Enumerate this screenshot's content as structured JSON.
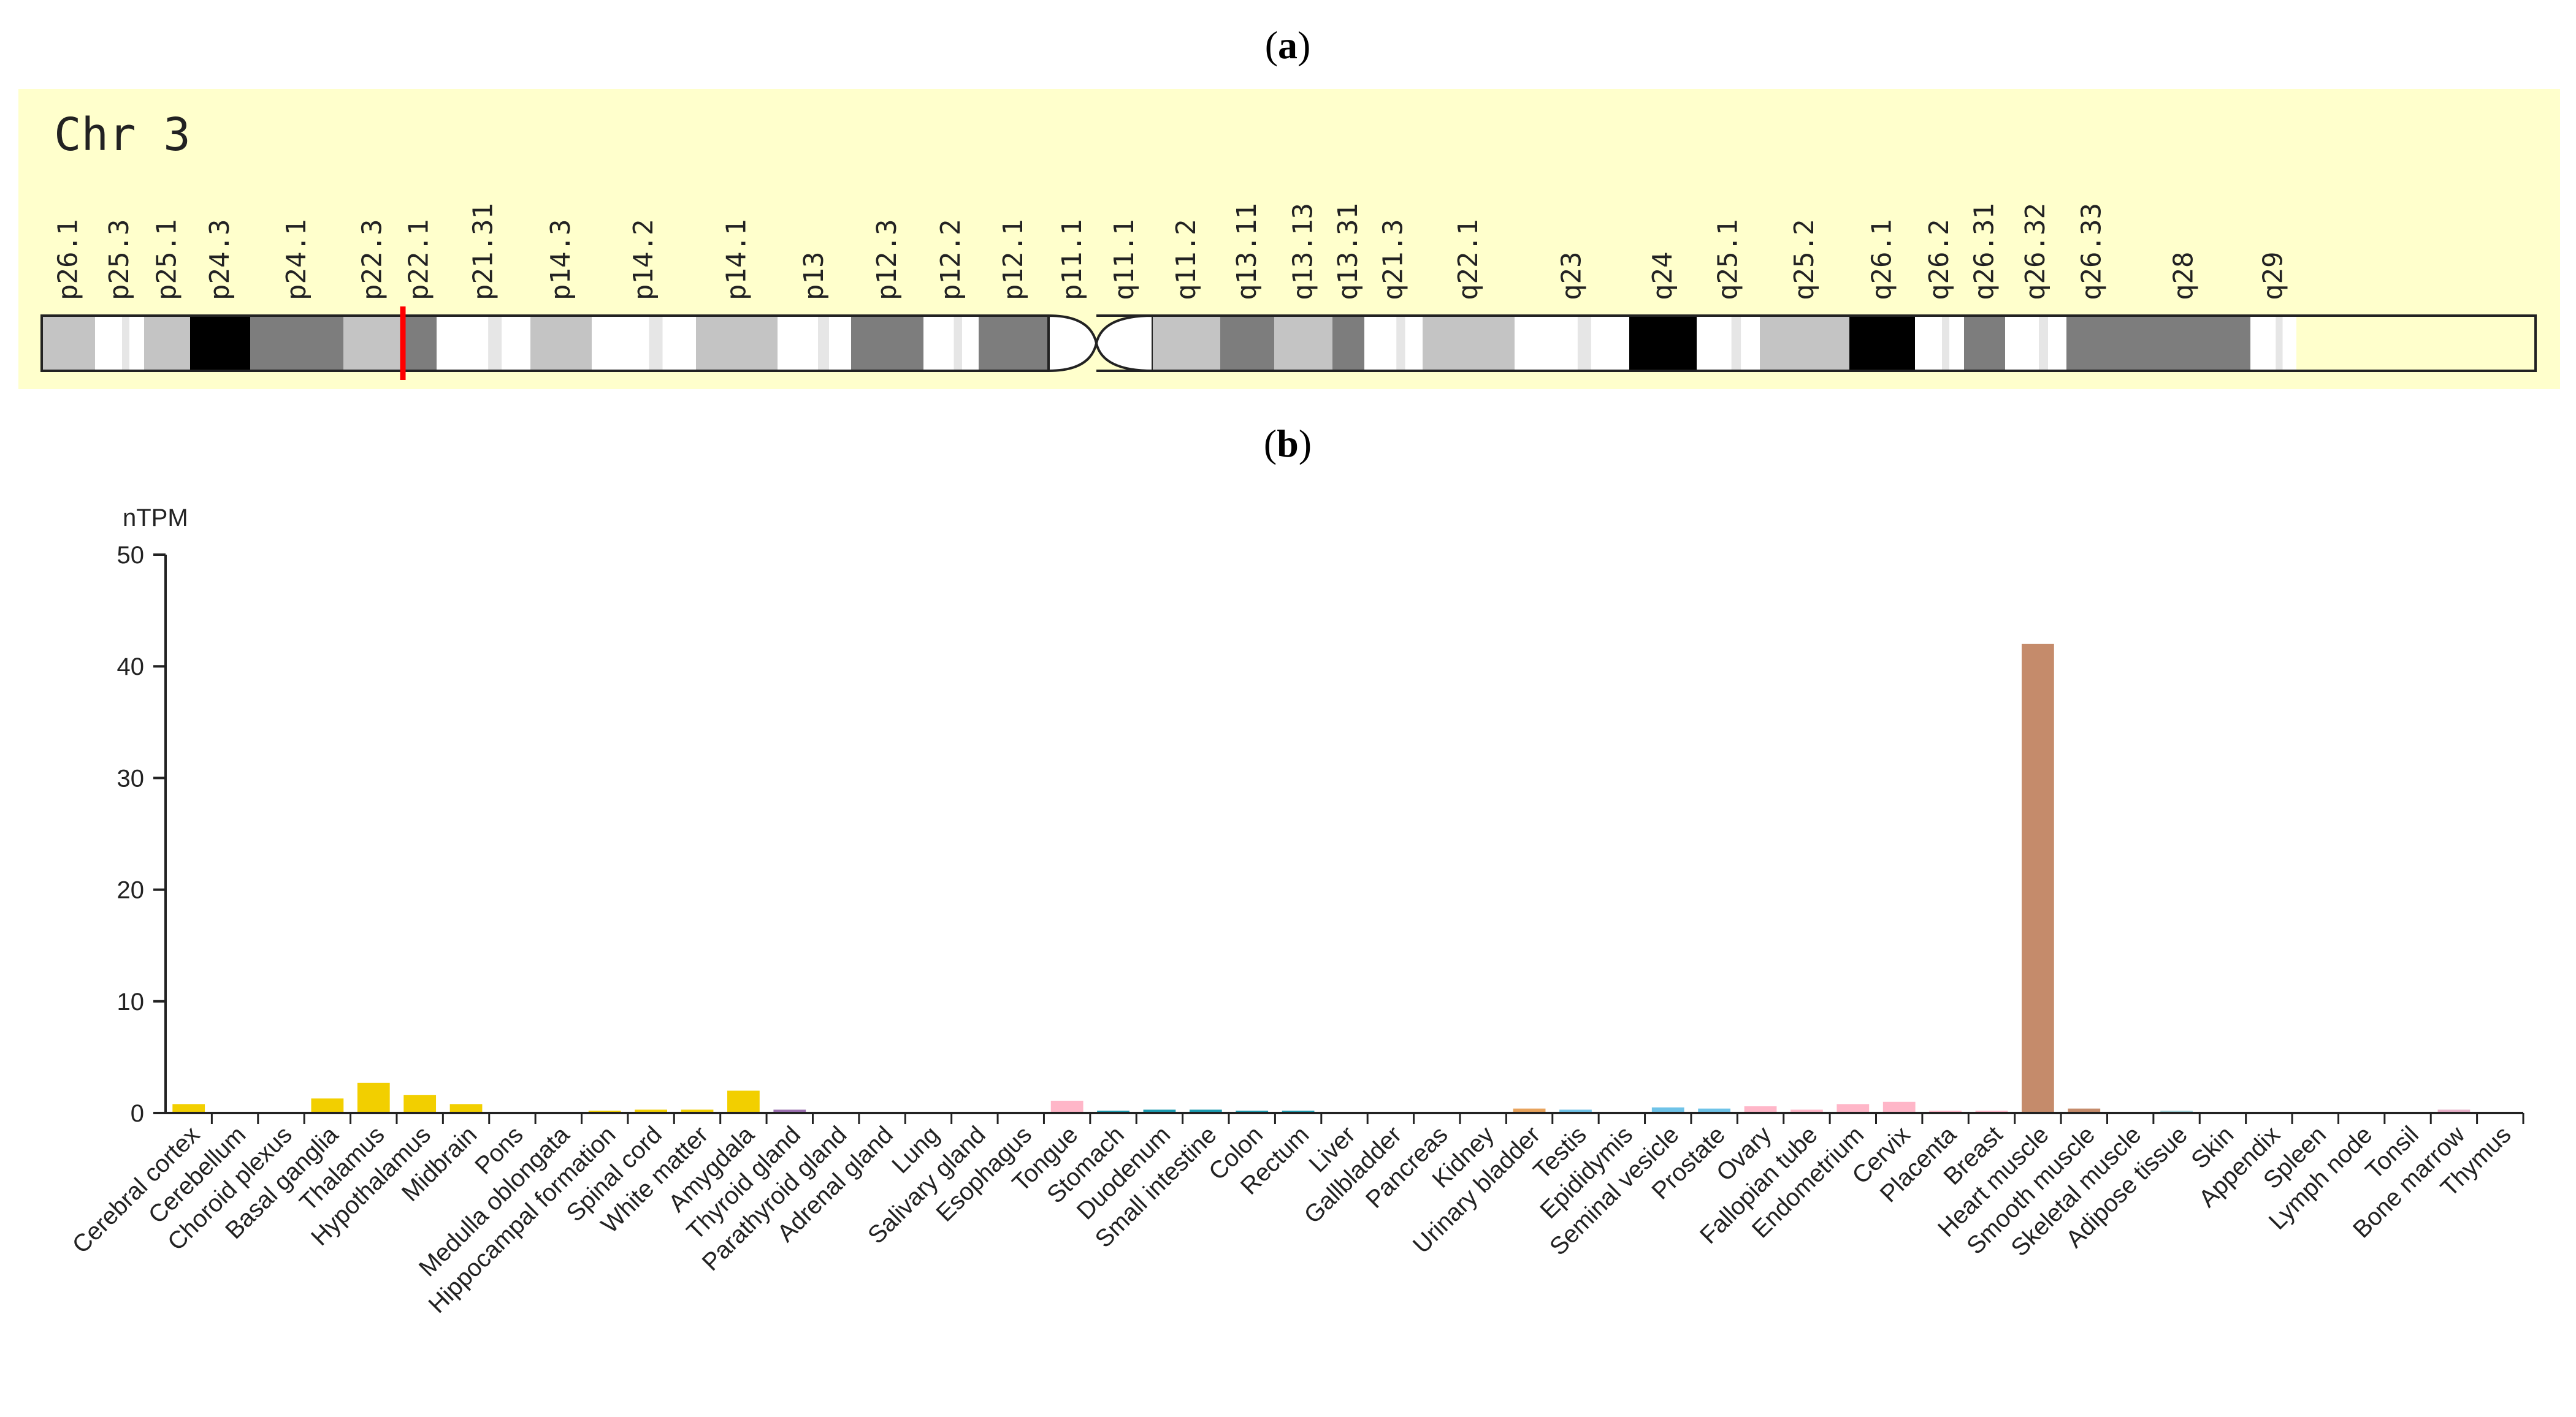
{
  "figure": {
    "panel_a_label": "a",
    "panel_b_label": "b"
  },
  "ideogram": {
    "chromosome_label": "Chr 3",
    "bands": [
      {
        "name": "p26.1",
        "shade": "gpos25"
      },
      {
        "name": "p25.3",
        "shade": "gneg"
      },
      {
        "name": "p25.1",
        "shade": "gpos25"
      },
      {
        "name": "p24.3",
        "shade": "gpos100"
      },
      {
        "name": "p24.1",
        "shade": "gpos75"
      },
      {
        "name": "p22.3",
        "shade": "gpos25"
      },
      {
        "name": "p22.1",
        "shade": "gpos75"
      },
      {
        "name": "p21.31",
        "shade": "gneg"
      },
      {
        "name": "p14.3",
        "shade": "gpos25"
      },
      {
        "name": "p14.2",
        "shade": "gneg"
      },
      {
        "name": "p14.1",
        "shade": "gpos25"
      },
      {
        "name": "p13",
        "shade": "gneg"
      },
      {
        "name": "p12.3",
        "shade": "gpos75"
      },
      {
        "name": "p12.2",
        "shade": "gneg"
      },
      {
        "name": "p12.1",
        "shade": "gpos75"
      },
      {
        "name": "p11.1",
        "shade": "acen"
      },
      {
        "name": "q11.1",
        "shade": "acen"
      },
      {
        "name": "q11.2",
        "shade": "gpos25"
      },
      {
        "name": "q13.11",
        "shade": "gpos75"
      },
      {
        "name": "q13.13",
        "shade": "gpos25"
      },
      {
        "name": "q13.31",
        "shade": "gpos75"
      },
      {
        "name": "q21.3",
        "shade": "gneg"
      },
      {
        "name": "q22.1",
        "shade": "gpos25"
      },
      {
        "name": "q23",
        "shade": "gneg"
      },
      {
        "name": "q24",
        "shade": "gpos100"
      },
      {
        "name": "q25.1",
        "shade": "gneg"
      },
      {
        "name": "q25.2",
        "shade": "gpos25"
      },
      {
        "name": "q26.1",
        "shade": "gpos100"
      },
      {
        "name": "q26.2",
        "shade": "gneg"
      },
      {
        "name": "q26.31",
        "shade": "gpos75"
      },
      {
        "name": "q26.32",
        "shade": "gneg"
      },
      {
        "name": "q26.33",
        "shade": "gpos75"
      },
      {
        "name": "q28",
        "shade": "gpos75"
      },
      {
        "name": "q29",
        "shade": "gneg"
      }
    ],
    "marker_band": "p22.1",
    "colors": {
      "panel_background": "#ffffcc",
      "gpos100": "#000000",
      "gpos75": "#7d7d7d",
      "gpos25": "#c4c4c4",
      "gneg": "#ffffff",
      "acen": "#ffffff",
      "marker": "#ff0000"
    }
  },
  "chart_data": {
    "type": "bar",
    "title": "",
    "xlabel": "",
    "ylabel": "nTPM",
    "ylim": [
      0,
      50
    ],
    "yticks": [
      0,
      10,
      20,
      30,
      40,
      50
    ],
    "grid": false,
    "categories": [
      "Cerebral cortex",
      "Cerebellum",
      "Choroid plexus",
      "Basal ganglia",
      "Thalamus",
      "Hypothalamus",
      "Midbrain",
      "Pons",
      "Medulla oblongata",
      "Hippocampal formation",
      "Spinal cord",
      "White matter",
      "Amygdala",
      "Thyroid gland",
      "Parathyroid gland",
      "Adrenal gland",
      "Lung",
      "Salivary gland",
      "Esophagus",
      "Tongue",
      "Stomach",
      "Duodenum",
      "Small intestine",
      "Colon",
      "Rectum",
      "Liver",
      "Gallbladder",
      "Pancreas",
      "Kidney",
      "Urinary bladder",
      "Testis",
      "Epididymis",
      "Seminal vesicle",
      "Prostate",
      "Ovary",
      "Fallopian tube",
      "Endometrium",
      "Cervix",
      "Placenta",
      "Breast",
      "Heart muscle",
      "Smooth muscle",
      "Skeletal muscle",
      "Adipose tissue",
      "Skin",
      "Appendix",
      "Spleen",
      "Lymph node",
      "Tonsil",
      "Bone marrow",
      "Thymus"
    ],
    "values": [
      0.8,
      0.0,
      0.0,
      1.3,
      2.7,
      1.6,
      0.8,
      0.0,
      0.0,
      0.2,
      0.3,
      0.3,
      2.0,
      0.3,
      0.0,
      0.1,
      0.1,
      0.0,
      0.0,
      1.1,
      0.2,
      0.3,
      0.3,
      0.2,
      0.2,
      0.0,
      0.0,
      0.0,
      0.0,
      0.4,
      0.3,
      0.0,
      0.5,
      0.4,
      0.6,
      0.3,
      0.8,
      1.0,
      0.2,
      0.2,
      42.0,
      0.4,
      0.1,
      0.2,
      0.0,
      0.1,
      0.1,
      0.0,
      0.0,
      0.3,
      0.0
    ],
    "colors": [
      "#f2cf00",
      "#f2cf00",
      "#f2cf00",
      "#f2cf00",
      "#f2cf00",
      "#f2cf00",
      "#f2cf00",
      "#f2cf00",
      "#f2cf00",
      "#f2cf00",
      "#f2cf00",
      "#f2cf00",
      "#f2cf00",
      "#9b6fb0",
      "#9b6fb0",
      "#9b6fb0",
      "#6fb3d9",
      "#8fb3a0",
      "#ffb6c8",
      "#ffb6c8",
      "#1b9bb0",
      "#1b9bb0",
      "#1b9bb0",
      "#1b9bb0",
      "#1b9bb0",
      "#d7b15a",
      "#d7b15a",
      "#d7b15a",
      "#e8a35c",
      "#e8a35c",
      "#6fc3e8",
      "#6fc3e8",
      "#6fc3e8",
      "#6fc3e8",
      "#ffb6c8",
      "#ffb6c8",
      "#ffb6c8",
      "#ffb6c8",
      "#ffb6c8",
      "#ffb6c8",
      "#c58b6b",
      "#c58b6b",
      "#c58b6b",
      "#9fcfd6",
      "#d0c8e0",
      "#e8b0c8",
      "#e8b0c8",
      "#e8b0c8",
      "#e8b0c8",
      "#e8b0c8",
      "#e8b0c8"
    ]
  }
}
